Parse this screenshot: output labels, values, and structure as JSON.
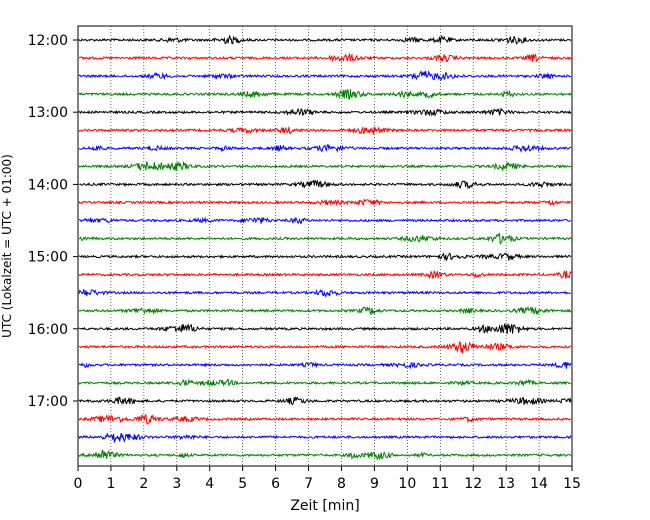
{
  "chart_data": {
    "type": "line",
    "subtype": "helicorder",
    "title": "",
    "xlabel": "Zeit  [min]",
    "ylabel": "UTC (Lokalzeit = UTC + 01:00)",
    "xlim": [
      0,
      15
    ],
    "x_ticks": [
      "0",
      "1",
      "2",
      "3",
      "4",
      "5",
      "6",
      "7",
      "8",
      "9",
      "10",
      "11",
      "12",
      "13",
      "14",
      "15"
    ],
    "y_tick_labels": [
      "12:00",
      "13:00",
      "14:00",
      "15:00",
      "16:00",
      "17:00"
    ],
    "trace_start_times": [
      "12:00",
      "12:15",
      "12:30",
      "12:45",
      "13:00",
      "13:15",
      "13:30",
      "13:45",
      "14:00",
      "14:15",
      "14:30",
      "14:45",
      "15:00",
      "15:15",
      "15:30",
      "15:45",
      "16:00",
      "16:15",
      "16:30",
      "16:45",
      "17:00",
      "17:15",
      "17:30",
      "17:45"
    ],
    "trace_minutes": 15,
    "trace_colors": [
      "#000000",
      "#ff0000",
      "#0000ff",
      "#008000"
    ],
    "grid": "vertical-dotted"
  }
}
